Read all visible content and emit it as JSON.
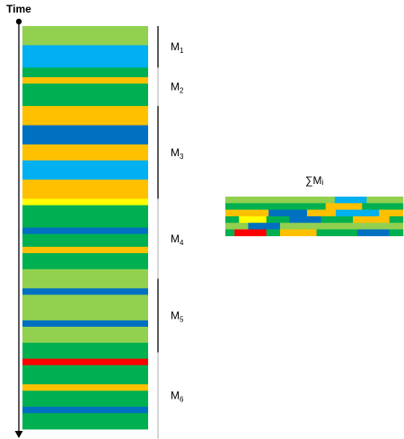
{
  "axis": {
    "label": "Time"
  },
  "colors": {
    "light_green": "#92d050",
    "green": "#00b050",
    "light_blue": "#00b0f0",
    "blue": "#0070c0",
    "orange": "#ffc000",
    "yellow": "#ffff00",
    "red": "#ff0000"
  },
  "timeline": [
    {
      "color": "light_green",
      "units": 6
    },
    {
      "color": "light_blue",
      "units": 7
    },
    {
      "color": "green",
      "units": 3
    },
    {
      "color": "orange",
      "units": 2
    },
    {
      "color": "green",
      "units": 7
    },
    {
      "color": "orange",
      "units": 6
    },
    {
      "color": "blue",
      "units": 6
    },
    {
      "color": "orange",
      "units": 5
    },
    {
      "color": "light_blue",
      "units": 6
    },
    {
      "color": "orange",
      "units": 6
    },
    {
      "color": "yellow",
      "units": 2
    },
    {
      "color": "green",
      "units": 7
    },
    {
      "color": "blue",
      "units": 2
    },
    {
      "color": "green",
      "units": 4
    },
    {
      "color": "orange",
      "units": 2
    },
    {
      "color": "green",
      "units": 5
    },
    {
      "color": "light_green",
      "units": 6
    },
    {
      "color": "blue",
      "units": 2
    },
    {
      "color": "light_green",
      "units": 8
    },
    {
      "color": "blue",
      "units": 2
    },
    {
      "color": "light_green",
      "units": 5
    },
    {
      "color": "green",
      "units": 5
    },
    {
      "color": "red",
      "units": 2
    },
    {
      "color": "green",
      "units": 6
    },
    {
      "color": "orange",
      "units": 2
    },
    {
      "color": "green",
      "units": 5
    },
    {
      "color": "blue",
      "units": 2
    },
    {
      "color": "green",
      "units": 5
    }
  ],
  "segments": [
    {
      "id": "m1",
      "letter": "M",
      "sub": "1",
      "start": 0,
      "end": 13,
      "dark": true
    },
    {
      "id": "m2",
      "letter": "M",
      "sub": "2",
      "start": 13,
      "end": 25,
      "dark": false
    },
    {
      "id": "m3",
      "letter": "M",
      "sub": "3",
      "start": 25,
      "end": 54,
      "dark": true
    },
    {
      "id": "m4",
      "letter": "M",
      "sub": "4",
      "start": 54,
      "end": 79,
      "dark": false
    },
    {
      "id": "m5",
      "letter": "M",
      "sub": "5",
      "start": 79,
      "end": 102,
      "dark": true
    },
    {
      "id": "m6",
      "letter": "M",
      "sub": "6",
      "start": 102,
      "end": 129,
      "dark": false
    }
  ],
  "sum": {
    "label": "∑Mᵢ",
    "rows": [
      [
        {
          "color": "light_green",
          "units": 12
        },
        {
          "color": "light_blue",
          "units": 3.5
        },
        {
          "color": "light_green",
          "units": 4
        }
      ],
      [
        {
          "color": "green",
          "units": 11
        },
        {
          "color": "orange",
          "units": 4
        },
        {
          "color": "green",
          "units": 4.5
        }
      ],
      [
        {
          "color": "orange",
          "units": 4.5
        },
        {
          "color": "blue",
          "units": 4
        },
        {
          "color": "orange",
          "units": 3
        },
        {
          "color": "light_blue",
          "units": 4.5
        },
        {
          "color": "orange",
          "units": 2.5
        }
      ],
      [
        {
          "color": "green",
          "units": 1.5
        },
        {
          "color": "yellow",
          "units": 3
        },
        {
          "color": "green",
          "units": 2.5
        },
        {
          "color": "blue",
          "units": 3.5
        },
        {
          "color": "green",
          "units": 3.5
        },
        {
          "color": "orange",
          "units": 4
        },
        {
          "color": "green",
          "units": 1.5
        }
      ],
      [
        {
          "color": "light_green",
          "units": 2.5
        },
        {
          "color": "blue",
          "units": 3.5
        },
        {
          "color": "light_green",
          "units": 13.5
        }
      ],
      [
        {
          "color": "green",
          "units": 1
        },
        {
          "color": "red",
          "units": 3.5
        },
        {
          "color": "green",
          "units": 1.5
        },
        {
          "color": "orange",
          "units": 4
        },
        {
          "color": "green",
          "units": 4.5
        },
        {
          "color": "blue",
          "units": 3.5
        },
        {
          "color": "green",
          "units": 1.5
        }
      ]
    ]
  }
}
